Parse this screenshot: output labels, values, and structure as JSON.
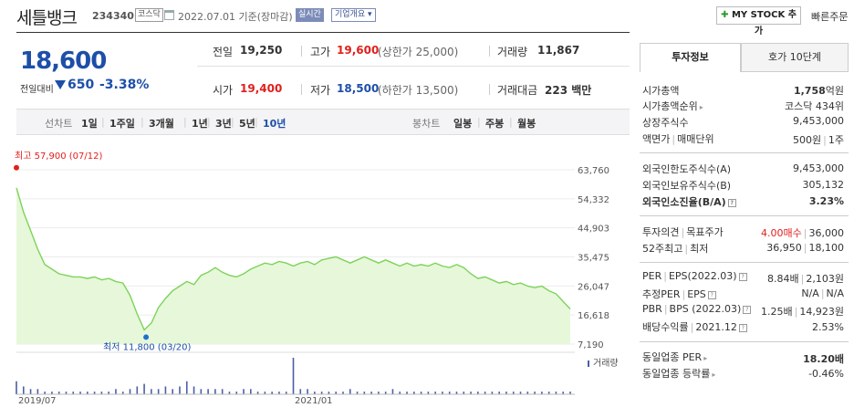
{
  "header": {
    "company": "세틀뱅크",
    "code": "234340",
    "market_badge": "코스닥",
    "date_text": "2022.07.01 기준(장마감)",
    "realtime_label": "실시간",
    "corp_overview_label": "기업개요",
    "my_stock_label": "MY STOCK 추가",
    "quick_order_label": "빠른주문"
  },
  "price": {
    "current": "18,600",
    "change_label": "전일대비",
    "change_value": "650",
    "change_rate": "-3.38%"
  },
  "summary": {
    "prev_label": "전일",
    "prev_value": "19,250",
    "high_label": "고가",
    "high_value": "19,600",
    "upper_limit": "(상한가 25,000)",
    "volume_label": "거래량",
    "volume_value": "11,867",
    "open_label": "시가",
    "open_value": "19,400",
    "low_label": "저가",
    "low_value": "18,500",
    "lower_limit": "(하한가 13,500)",
    "amount_label": "거래대금",
    "amount_value": "223 백만"
  },
  "periods": {
    "line_label": "선차트",
    "line_items": [
      "1일",
      "1주일",
      "3개월",
      "1년",
      "3년",
      "5년",
      "10년"
    ],
    "active": "10년",
    "candle_label": "봉차트",
    "candle_items": [
      "일봉",
      "주봉",
      "월봉"
    ]
  },
  "chart_data": {
    "type": "area",
    "y_ticks": [
      "63,760",
      "54,332",
      "44,903",
      "35,475",
      "26,047",
      "16,618",
      "7,190"
    ],
    "ylim": [
      7190,
      63760
    ],
    "x_ticks": [
      "2019/07",
      "2021/01"
    ],
    "high_label": "최고 57,900 (07/12)",
    "low_label": "최저 11,800 (03/20)",
    "volume_legend": "거래량",
    "values": [
      57900,
      50000,
      44000,
      38000,
      33000,
      31500,
      30000,
      29500,
      29000,
      29000,
      28500,
      29000,
      28000,
      28500,
      27500,
      27000,
      23000,
      17000,
      11800,
      14000,
      19000,
      22000,
      24500,
      26000,
      27500,
      26500,
      29500,
      30500,
      32000,
      30500,
      29500,
      29000,
      30000,
      31500,
      32500,
      33500,
      33000,
      34000,
      33500,
      32500,
      33500,
      34000,
      33000,
      34500,
      35000,
      35500,
      34500,
      33500,
      34500,
      35500,
      34500,
      33500,
      34500,
      33500,
      32500,
      33500,
      32500,
      33000,
      32500,
      33500,
      32500,
      32000,
      33000,
      32000,
      30000,
      28500,
      29000,
      28000,
      27000,
      27500,
      26500,
      27000,
      26000,
      25500,
      26000,
      24500,
      23500,
      21000,
      18600
    ],
    "volumes": [
      5,
      3,
      2,
      2,
      1,
      1,
      1,
      1,
      1,
      1,
      1,
      1,
      1,
      1,
      2,
      1,
      2,
      3,
      4,
      2,
      2,
      3,
      2,
      3,
      5,
      3,
      2,
      2,
      2,
      2,
      1,
      1,
      2,
      2,
      1,
      1,
      1,
      1,
      1,
      14,
      2,
      2,
      1,
      1,
      1,
      1,
      1,
      2,
      1,
      1,
      1,
      1,
      1,
      2,
      1,
      1,
      1,
      1,
      1,
      1,
      1,
      1,
      1,
      1,
      1,
      1,
      1,
      1,
      1,
      1,
      1,
      1,
      1,
      1,
      1,
      1,
      1,
      1,
      1
    ]
  },
  "right_panel": {
    "tab_info": "투자정보",
    "tab_quote": "호가 10단계",
    "market_cap_label": "시가총액",
    "market_cap_value": "1,758",
    "market_cap_unit": "억원",
    "rank_label": "시가총액순위",
    "rank_value": "코스닥 434위",
    "shares_label": "상장주식수",
    "shares_value": "9,453,000",
    "par_label": "액면가",
    "unit_label": "매매단위",
    "par_value": "500원",
    "unit_value": "1주",
    "foreign_limit_label": "외국인한도주식수(A)",
    "foreign_limit_value": "9,453,000",
    "foreign_hold_label": "외국인보유주식수(B)",
    "foreign_hold_value": "305,132",
    "foreign_ratio_label": "외국인소진율(B/A)",
    "foreign_ratio_value": "3.23%",
    "opinion_label": "투자의견",
    "target_label": "목표주가",
    "opinion_value": "4.00매수",
    "target_value": "36,000",
    "w52_high_label": "52주최고",
    "w52_low_label": "최저",
    "w52_high_value": "36,950",
    "w52_low_value": "18,100",
    "per_label": "PER",
    "eps_label": "EPS(2022.03)",
    "per_value": "8.84배",
    "eps_value": "2,103원",
    "est_per_label": "추정PER",
    "est_eps_label": "EPS",
    "est_per_value": "N/A",
    "est_eps_value": "N/A",
    "pbr_label": "PBR",
    "bps_label": "BPS (2022.03)",
    "pbr_value": "1.25배",
    "bps_value": "14,923원",
    "dividend_label": "배당수익률",
    "dividend_period": "2021.12",
    "dividend_value": "2.53%",
    "industry_per_label": "동일업종 PER",
    "industry_per_value": "18.20배",
    "industry_change_label": "동일업종 등락률",
    "industry_change_value": "-0.46%"
  },
  "colors": {
    "up": "#e0201c",
    "down": "#1d4fa8",
    "chart_line": "#7dd35a",
    "chart_fill": "#e6f8d9"
  }
}
